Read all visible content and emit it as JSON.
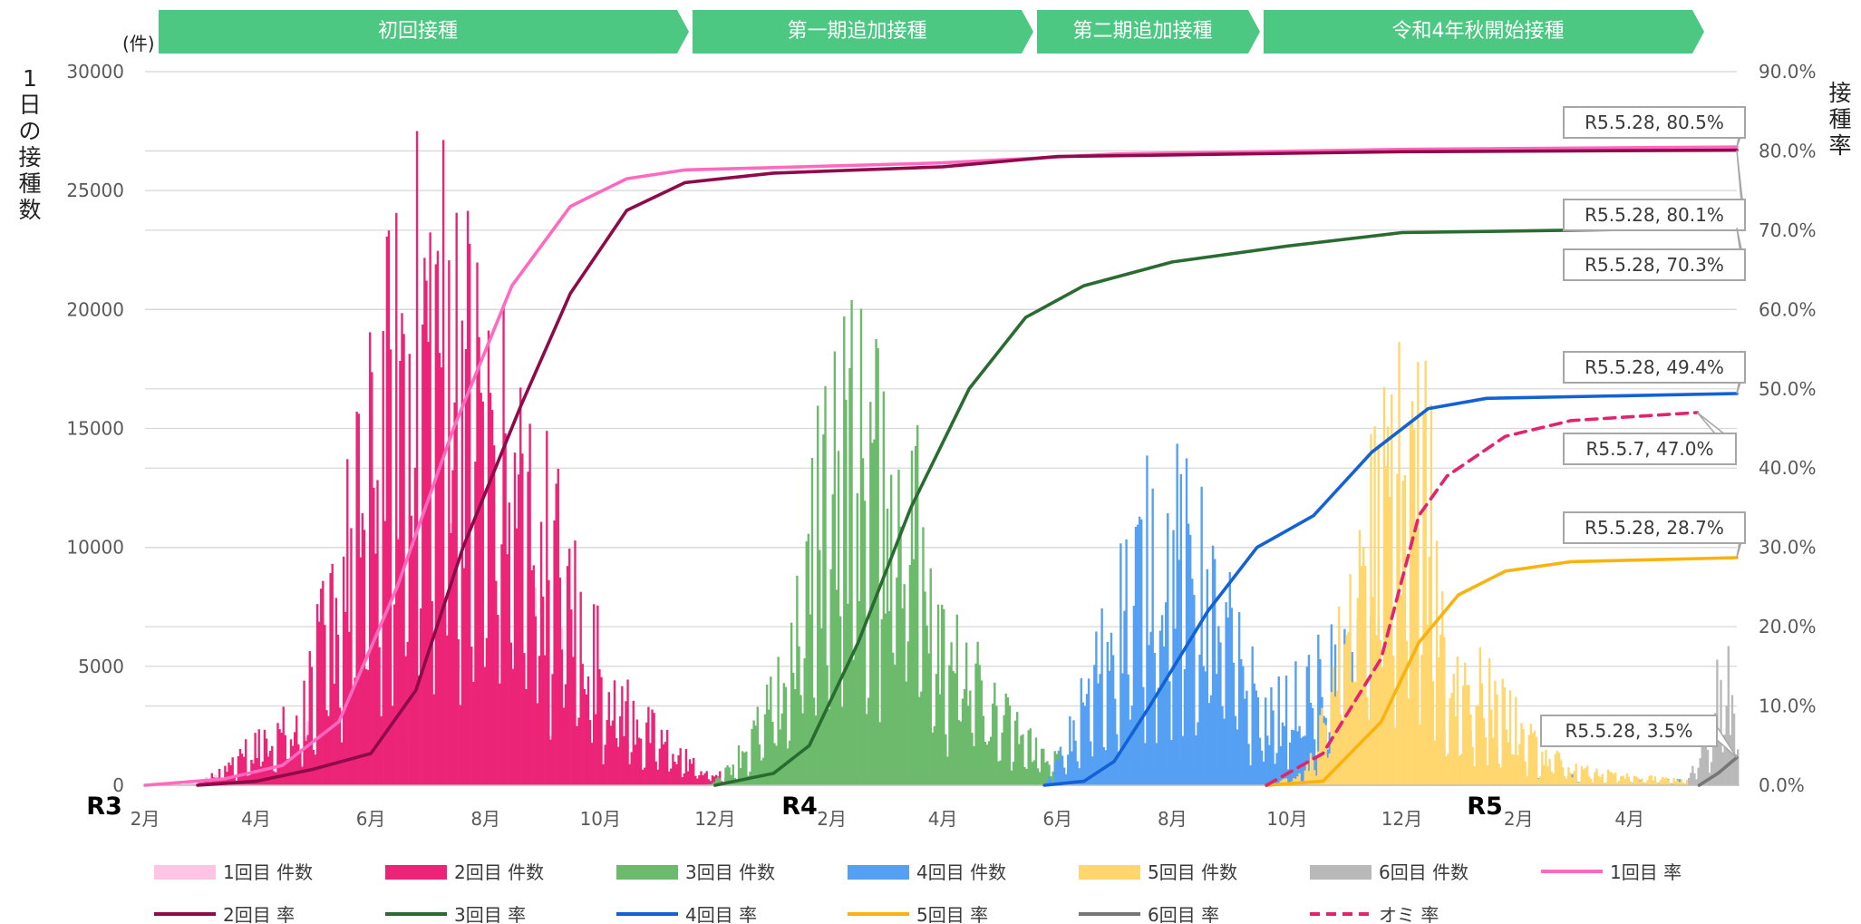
{
  "unit_label": "(件)",
  "y_left_title": "1日の接種数",
  "y_right_title": "接種率",
  "phases": [
    {
      "label": "初回接種"
    },
    {
      "label": "第一期追加接種"
    },
    {
      "label": "第二期追加接種"
    },
    {
      "label": "令和4年秋開始接種"
    }
  ],
  "colors": {
    "phase_band": "#4dc882",
    "grid": "#d9d9d9",
    "axis_text": "#595959",
    "dose1": "#ffc3e4",
    "dose2": "#ec2478",
    "dose3": "#6cba6b",
    "dose4": "#55a0f2",
    "dose5": "#ffd76e",
    "dose6": "#b9b9b9",
    "rate1": "#ff6ac0",
    "rate2": "#8e0a4a",
    "rate3": "#2a6b32",
    "rate4": "#1262d6",
    "rate5": "#f8b30f",
    "rate6": "#767676",
    "rate_omicron": "#e0246f"
  },
  "chart_data": {
    "type": "bar+line",
    "x_axis": {
      "tick_labels": [
        "2月",
        "4月",
        "6月",
        "8月",
        "10月",
        "12月",
        "2月",
        "4月",
        "6月",
        "8月",
        "10月",
        "12月",
        "2月",
        "4月"
      ],
      "tick_dates": [
        "2021-02-01",
        "2021-04-01",
        "2021-06-01",
        "2021-08-01",
        "2021-10-01",
        "2021-12-01",
        "2022-02-01",
        "2022-04-01",
        "2022-06-01",
        "2022-08-01",
        "2022-10-01",
        "2022-12-01",
        "2023-02-01",
        "2023-04-01"
      ],
      "year_labels": [
        {
          "label": "R3",
          "date": "2021-01-15"
        },
        {
          "label": "R4",
          "date": "2022-01-01"
        },
        {
          "label": "R5",
          "date": "2023-01-01"
        }
      ],
      "range": [
        "2021-02-01",
        "2023-05-28"
      ]
    },
    "y_left": {
      "ticks": [
        "0",
        "5000",
        "10000",
        "15000",
        "20000",
        "25000",
        "30000"
      ],
      "ylim": [
        0,
        30000
      ]
    },
    "y_right": {
      "ticks": [
        "0.0%",
        "10.0%",
        "20.0%",
        "30.0%",
        "40.0%",
        "50.0%",
        "60.0%",
        "70.0%",
        "80.0%",
        "90.0%"
      ],
      "ylim": [
        0,
        90
      ]
    },
    "grid": true,
    "legend_position": "bottom",
    "bar_series": [
      {
        "name": "1回目 件数",
        "color_key": "dose1",
        "points": [
          [
            "2021-02-15",
            0
          ],
          [
            "2021-03-05",
            250
          ],
          [
            "2021-03-25",
            600
          ],
          [
            "2021-04-15",
            1300
          ],
          [
            "2021-05-01",
            2000
          ],
          [
            "2021-05-15",
            3200
          ],
          [
            "2021-06-01",
            5200
          ],
          [
            "2021-06-20",
            7000
          ],
          [
            "2021-07-05",
            8300
          ],
          [
            "2021-07-20",
            8800
          ],
          [
            "2021-08-05",
            8300
          ],
          [
            "2021-08-20",
            7000
          ],
          [
            "2021-09-05",
            5000
          ],
          [
            "2021-09-20",
            3000
          ],
          [
            "2021-10-05",
            1700
          ],
          [
            "2021-10-20",
            900
          ],
          [
            "2021-11-05",
            400
          ],
          [
            "2021-11-25",
            150
          ],
          [
            "2022-01-15",
            80
          ],
          [
            "2022-02-15",
            150
          ],
          [
            "2022-03-20",
            250
          ],
          [
            "2022-04-15",
            150
          ],
          [
            "2022-06-01",
            80
          ],
          [
            "2022-09-01",
            60
          ],
          [
            "2022-12-31",
            30
          ],
          [
            "2023-05-28",
            10
          ]
        ]
      },
      {
        "name": "2回目 件数",
        "color_key": "dose2",
        "points": [
          [
            "2021-02-25",
            0
          ],
          [
            "2021-03-10",
            400
          ],
          [
            "2021-03-25",
            1200
          ],
          [
            "2021-04-10",
            2300
          ],
          [
            "2021-04-25",
            2800
          ],
          [
            "2021-05-10",
            6500
          ],
          [
            "2021-05-25",
            10500
          ],
          [
            "2021-06-10",
            15000
          ],
          [
            "2021-06-25",
            17500
          ],
          [
            "2021-07-10",
            18000
          ],
          [
            "2021-07-25",
            15500
          ],
          [
            "2021-08-10",
            13000
          ],
          [
            "2021-08-25",
            11000
          ],
          [
            "2021-09-10",
            8500
          ],
          [
            "2021-09-25",
            5500
          ],
          [
            "2021-10-10",
            3500
          ],
          [
            "2021-10-25",
            2200
          ],
          [
            "2021-11-10",
            1300
          ],
          [
            "2021-11-25",
            500
          ],
          [
            "2021-12-15",
            200
          ],
          [
            "2022-03-01",
            300
          ],
          [
            "2022-06-01",
            120
          ],
          [
            "2022-12-31",
            50
          ],
          [
            "2023-05-28",
            10
          ]
        ]
      },
      {
        "name": "3回目 件数",
        "color_key": "dose3",
        "points": [
          [
            "2021-11-25",
            0
          ],
          [
            "2021-12-05",
            400
          ],
          [
            "2021-12-20",
            1800
          ],
          [
            "2022-01-05",
            3700
          ],
          [
            "2022-01-20",
            8500
          ],
          [
            "2022-02-01",
            14000
          ],
          [
            "2022-02-15",
            13000
          ],
          [
            "2022-03-01",
            12500
          ],
          [
            "2022-03-15",
            11500
          ],
          [
            "2022-03-31",
            6500
          ],
          [
            "2022-04-15",
            4200
          ],
          [
            "2022-05-01",
            2700
          ],
          [
            "2022-05-20",
            1500
          ],
          [
            "2022-06-10",
            700
          ],
          [
            "2022-07-10",
            600
          ],
          [
            "2022-08-10",
            450
          ],
          [
            "2022-09-10",
            300
          ],
          [
            "2022-10-10",
            250
          ],
          [
            "2022-11-10",
            300
          ],
          [
            "2022-12-31",
            100
          ],
          [
            "2023-05-28",
            20
          ]
        ]
      },
      {
        "name": "4回目 件数",
        "color_key": "dose4",
        "points": [
          [
            "2022-05-25",
            0
          ],
          [
            "2022-06-05",
            1500
          ],
          [
            "2022-06-20",
            4200
          ],
          [
            "2022-07-05",
            7000
          ],
          [
            "2022-07-20",
            9000
          ],
          [
            "2022-08-05",
            9200
          ],
          [
            "2022-08-20",
            7500
          ],
          [
            "2022-09-05",
            5000
          ],
          [
            "2022-09-20",
            2500
          ],
          [
            "2022-10-05",
            3500
          ],
          [
            "2022-10-20",
            4200
          ],
          [
            "2022-11-05",
            5000
          ],
          [
            "2022-11-20",
            4500
          ],
          [
            "2022-12-05",
            3500
          ],
          [
            "2022-12-20",
            2200
          ],
          [
            "2023-01-10",
            1300
          ],
          [
            "2023-02-01",
            700
          ],
          [
            "2023-03-01",
            300
          ],
          [
            "2023-05-28",
            100
          ]
        ]
      },
      {
        "name": "5回目 件数",
        "color_key": "dose5",
        "points": [
          [
            "2022-09-20",
            0
          ],
          [
            "2022-10-10",
            400
          ],
          [
            "2022-10-25",
            4000
          ],
          [
            "2022-11-05",
            8000
          ],
          [
            "2022-11-20",
            11500
          ],
          [
            "2022-12-01",
            12500
          ],
          [
            "2022-12-15",
            11000
          ],
          [
            "2022-12-25",
            4000
          ],
          [
            "2023-01-10",
            4000
          ],
          [
            "2023-01-25",
            2800
          ],
          [
            "2023-02-10",
            1400
          ],
          [
            "2023-03-01",
            600
          ],
          [
            "2023-04-01",
            300
          ],
          [
            "2023-05-28",
            100
          ]
        ]
      },
      {
        "name": "6回目 件数",
        "color_key": "dose6",
        "points": [
          [
            "2023-05-01",
            0
          ],
          [
            "2023-05-10",
            2000
          ],
          [
            "2023-05-20",
            4000
          ],
          [
            "2023-05-28",
            3600
          ]
        ]
      }
    ],
    "rate_series": [
      {
        "name": "1回目 率",
        "color_key": "rate1",
        "dashed": false,
        "points": [
          [
            "2021-02-01",
            0
          ],
          [
            "2021-03-15",
            0.8
          ],
          [
            "2021-04-15",
            2.5
          ],
          [
            "2021-05-15",
            8
          ],
          [
            "2021-06-15",
            25
          ],
          [
            "2021-07-15",
            45
          ],
          [
            "2021-08-15",
            63
          ],
          [
            "2021-09-15",
            73
          ],
          [
            "2021-10-15",
            76.5
          ],
          [
            "2021-11-15",
            77.6
          ],
          [
            "2022-01-01",
            77.9
          ],
          [
            "2022-04-01",
            78.5
          ],
          [
            "2022-07-01",
            79.6
          ],
          [
            "2022-12-01",
            80.2
          ],
          [
            "2023-05-28",
            80.5
          ]
        ]
      },
      {
        "name": "2回目 率",
        "color_key": "rate2",
        "dashed": false,
        "points": [
          [
            "2021-03-01",
            0
          ],
          [
            "2021-04-01",
            0.5
          ],
          [
            "2021-05-01",
            2
          ],
          [
            "2021-06-01",
            4
          ],
          [
            "2021-06-25",
            12
          ],
          [
            "2021-07-20",
            30
          ],
          [
            "2021-08-20",
            48
          ],
          [
            "2021-09-15",
            62
          ],
          [
            "2021-10-15",
            72.5
          ],
          [
            "2021-11-15",
            76
          ],
          [
            "2022-01-01",
            77.2
          ],
          [
            "2022-04-01",
            78
          ],
          [
            "2022-06-01",
            79.3
          ],
          [
            "2022-12-01",
            79.9
          ],
          [
            "2023-05-28",
            80.1
          ]
        ]
      },
      {
        "name": "3回目 率",
        "color_key": "rate3",
        "dashed": false,
        "points": [
          [
            "2021-12-01",
            0
          ],
          [
            "2022-01-01",
            1.5
          ],
          [
            "2022-01-20",
            5
          ],
          [
            "2022-02-15",
            18
          ],
          [
            "2022-03-15",
            35
          ],
          [
            "2022-04-15",
            50
          ],
          [
            "2022-05-15",
            59
          ],
          [
            "2022-06-15",
            63
          ],
          [
            "2022-08-01",
            66
          ],
          [
            "2022-10-01",
            68
          ],
          [
            "2022-12-01",
            69.7
          ],
          [
            "2023-05-28",
            70.3
          ]
        ]
      },
      {
        "name": "4回目 率",
        "color_key": "rate4",
        "dashed": false,
        "points": [
          [
            "2022-05-25",
            0
          ],
          [
            "2022-06-15",
            0.5
          ],
          [
            "2022-07-01",
            3
          ],
          [
            "2022-07-20",
            10
          ],
          [
            "2022-08-20",
            22
          ],
          [
            "2022-09-15",
            30
          ],
          [
            "2022-10-15",
            34
          ],
          [
            "2022-11-15",
            42
          ],
          [
            "2022-12-15",
            47.5
          ],
          [
            "2023-01-15",
            48.8
          ],
          [
            "2023-05-28",
            49.4
          ]
        ]
      },
      {
        "name": "5回目 率",
        "color_key": "rate5",
        "dashed": false,
        "points": [
          [
            "2022-09-20",
            0
          ],
          [
            "2022-10-20",
            0.5
          ],
          [
            "2022-11-20",
            8
          ],
          [
            "2022-12-10",
            18
          ],
          [
            "2022-12-31",
            24
          ],
          [
            "2023-01-25",
            27
          ],
          [
            "2023-03-01",
            28.2
          ],
          [
            "2023-05-28",
            28.7
          ]
        ]
      },
      {
        "name": "6回目 率",
        "color_key": "rate6",
        "dashed": false,
        "points": [
          [
            "2023-05-08",
            0
          ],
          [
            "2023-05-18",
            1.5
          ],
          [
            "2023-05-28",
            3.5
          ]
        ]
      },
      {
        "name": "オミ 率",
        "color_key": "rate_omicron",
        "dashed": true,
        "points": [
          [
            "2022-09-20",
            0
          ],
          [
            "2022-10-20",
            4
          ],
          [
            "2022-11-20",
            16
          ],
          [
            "2022-12-10",
            34
          ],
          [
            "2022-12-25",
            39
          ],
          [
            "2023-01-25",
            44
          ],
          [
            "2023-03-01",
            46
          ],
          [
            "2023-05-07",
            47.0
          ]
        ]
      }
    ],
    "annotations": [
      {
        "text": "R5.5.28, 80.5%",
        "series": "1回目 率",
        "date": "2023-05-28",
        "value": 80.5
      },
      {
        "text": "R5.5.28, 80.1%",
        "series": "2回目 率",
        "date": "2023-05-28",
        "value": 80.1
      },
      {
        "text": "R5.5.28, 70.3%",
        "series": "3回目 率",
        "date": "2023-05-28",
        "value": 70.3
      },
      {
        "text": "R5.5.28, 49.4%",
        "series": "4回目 率",
        "date": "2023-05-28",
        "value": 49.4
      },
      {
        "text": "R5.5.7, 47.0%",
        "series": "オミ 率",
        "date": "2023-05-07",
        "value": 47.0
      },
      {
        "text": "R5.5.28, 28.7%",
        "series": "5回目 率",
        "date": "2023-05-28",
        "value": 28.7
      },
      {
        "text": "R5.5.28, 3.5%",
        "series": "6回目 率",
        "date": "2023-05-28",
        "value": 3.5
      }
    ]
  }
}
